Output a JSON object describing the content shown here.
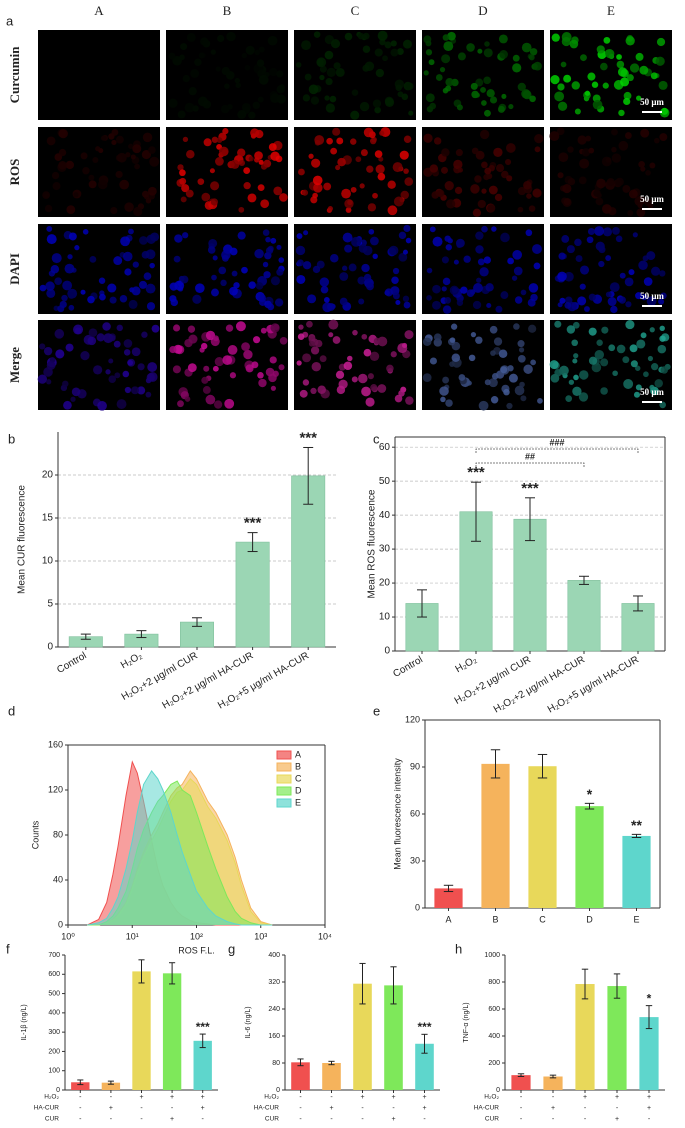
{
  "image_grid": {
    "panel": "a",
    "columns": [
      "A",
      "B",
      "C",
      "D",
      "E"
    ],
    "rows": [
      "Curcumin",
      "ROS",
      "DAPI",
      "Merge"
    ],
    "scale_bar": "50 μm"
  },
  "chart_data": [
    {
      "panel": "b",
      "type": "bar",
      "ylabel": "Mean CUR fluorescence",
      "categories": [
        "Control",
        "H₂O₂",
        "H₂O₂+2 μg/ml CUR",
        "H₂O₂+2 μg/ml HA-CUR",
        "H₂O₂+5 μg/ml HA-CUR"
      ],
      "values": [
        1.2,
        1.5,
        2.9,
        12.2,
        19.9
      ],
      "errors": [
        0.3,
        0.4,
        0.5,
        1.1,
        3.3
      ],
      "significance": [
        null,
        null,
        null,
        "***",
        "***"
      ],
      "color": "#9bd6b4",
      "ylim": [
        0,
        25
      ],
      "yticks": [
        0,
        5,
        10,
        15,
        20
      ],
      "grid": true
    },
    {
      "panel": "c",
      "type": "bar",
      "ylabel": "Mean ROS fluorescence",
      "categories": [
        "Control",
        "H₂O₂",
        "H₂O₂+2 μg/ml CUR",
        "H₂O₂+2 μg/ml HA-CUR",
        "H₂O₂+5 μg/ml HA-CUR"
      ],
      "values": [
        14,
        41,
        38.8,
        20.8,
        14
      ],
      "errors": [
        4,
        8.7,
        6.3,
        1.2,
        2.2
      ],
      "significance": [
        null,
        "***",
        "***",
        null,
        null
      ],
      "brackets": [
        {
          "from": 1,
          "to": 3,
          "text": "##"
        },
        {
          "from": 1,
          "to": 4,
          "text": "###"
        }
      ],
      "color": "#9bd6b4",
      "ylim": [
        0,
        63
      ],
      "yticks": [
        0,
        10,
        20,
        30,
        40,
        50,
        60
      ],
      "grid": true
    },
    {
      "panel": "d",
      "type": "area",
      "xlabel": "ROS F.L.",
      "ylabel": "Counts",
      "log_x": true,
      "legend": "top-right",
      "x": [
        2,
        3,
        4,
        5,
        6,
        8,
        10,
        12,
        15,
        20,
        25,
        30,
        40,
        50,
        60,
        80,
        100,
        150,
        200,
        300,
        400,
        500,
        700,
        1000,
        1500
      ],
      "series": [
        {
          "name": "A",
          "color": "#f0504f",
          "values": [
            0,
            5,
            20,
            45,
            70,
            115,
            145,
            135,
            110,
            75,
            50,
            35,
            20,
            12,
            8,
            4,
            2,
            1,
            0,
            0,
            0,
            0,
            0,
            0,
            0
          ]
        },
        {
          "name": "B",
          "color": "#f5b35c",
          "values": [
            0,
            0,
            2,
            5,
            10,
            20,
            35,
            50,
            65,
            80,
            90,
            100,
            115,
            122,
            125,
            137,
            130,
            110,
            100,
            80,
            60,
            40,
            15,
            3,
            0
          ]
        },
        {
          "name": "C",
          "color": "#e8d85a",
          "values": [
            0,
            0,
            2,
            4,
            8,
            18,
            32,
            46,
            60,
            75,
            85,
            95,
            110,
            118,
            120,
            130,
            125,
            105,
            95,
            75,
            55,
            35,
            12,
            2,
            0
          ]
        },
        {
          "name": "D",
          "color": "#7ee85a",
          "values": [
            0,
            0,
            3,
            8,
            15,
            30,
            50,
            68,
            85,
            100,
            110,
            115,
            125,
            128,
            120,
            115,
            100,
            70,
            50,
            25,
            12,
            6,
            2,
            0,
            0
          ]
        },
        {
          "name": "E",
          "color": "#5ed6cc",
          "values": [
            0,
            2,
            6,
            15,
            25,
            50,
            75,
            100,
            125,
            137,
            130,
            120,
            100,
            80,
            65,
            45,
            30,
            15,
            8,
            3,
            1,
            0,
            0,
            0,
            0
          ]
        }
      ],
      "xlim": [
        1,
        10000
      ],
      "xticks": [
        {
          "value": 1,
          "label": "10⁰"
        },
        {
          "value": 10,
          "label": "10¹"
        },
        {
          "value": 100,
          "label": "10²"
        },
        {
          "value": 1000,
          "label": "10³"
        },
        {
          "value": 10000,
          "label": "10⁴"
        }
      ],
      "ylim": [
        0,
        160
      ],
      "yticks": [
        0,
        40,
        80,
        120,
        160
      ]
    },
    {
      "panel": "e",
      "type": "bar",
      "ylabel": "Mean fluorescence intensity",
      "categories": [
        "A",
        "B",
        "C",
        "D",
        "E"
      ],
      "values": [
        12.5,
        92,
        90.5,
        65,
        46
      ],
      "errors": [
        2,
        9,
        7.5,
        1.8,
        1
      ],
      "significance": [
        null,
        null,
        null,
        "*",
        "**"
      ],
      "colors": [
        "#f0504f",
        "#f5b35c",
        "#e8d85a",
        "#7ee85a",
        "#5ed6cc"
      ],
      "ylim": [
        0,
        120
      ],
      "yticks": [
        0,
        30,
        60,
        90,
        120
      ],
      "grid": false
    },
    {
      "panel": "f",
      "type": "bar",
      "ylabel": "IL-1β (ng/L)",
      "values": [
        40,
        38,
        615,
        605,
        255
      ],
      "errors": [
        12,
        8,
        60,
        55,
        35
      ],
      "significance": [
        null,
        null,
        null,
        null,
        "***"
      ],
      "colors": [
        "#f0504f",
        "#f5b35c",
        "#e8d85a",
        "#7ee85a",
        "#5ed6cc"
      ],
      "conditions": [
        {
          "name": "H₂O₂",
          "signs": [
            "-",
            "-",
            "+",
            "+",
            "+"
          ]
        },
        {
          "name": "HA-CUR",
          "signs": [
            "-",
            "+",
            "-",
            "-",
            "+"
          ]
        },
        {
          "name": "CUR",
          "signs": [
            "-",
            "-",
            "-",
            "+",
            "-"
          ]
        }
      ],
      "ylim": [
        0,
        700
      ],
      "yticks": [
        0,
        100,
        200,
        300,
        400,
        500,
        600,
        700
      ],
      "grid": false
    },
    {
      "panel": "g",
      "type": "bar",
      "ylabel": "IL-6 (ng/L)",
      "values": [
        82,
        80,
        315,
        310,
        137
      ],
      "errors": [
        10,
        5,
        60,
        55,
        28
      ],
      "significance": [
        null,
        null,
        null,
        null,
        "***"
      ],
      "colors": [
        "#f0504f",
        "#f5b35c",
        "#e8d85a",
        "#7ee85a",
        "#5ed6cc"
      ],
      "conditions": [
        {
          "name": "H₂O₂",
          "signs": [
            "-",
            "-",
            "+",
            "+",
            "+"
          ]
        },
        {
          "name": "HA-CUR",
          "signs": [
            "-",
            "+",
            "-",
            "-",
            "+"
          ]
        },
        {
          "name": "CUR",
          "signs": [
            "-",
            "-",
            "-",
            "+",
            "-"
          ]
        }
      ],
      "ylim": [
        0,
        400
      ],
      "yticks": [
        0,
        80,
        160,
        240,
        320,
        400
      ],
      "grid": false
    },
    {
      "panel": "h",
      "type": "bar",
      "ylabel": "TNF-α (ng/L)",
      "values": [
        110,
        100,
        785,
        770,
        540
      ],
      "errors": [
        10,
        10,
        110,
        90,
        85
      ],
      "significance": [
        null,
        null,
        null,
        null,
        "*"
      ],
      "colors": [
        "#f0504f",
        "#f5b35c",
        "#e8d85a",
        "#7ee85a",
        "#5ed6cc"
      ],
      "conditions": [
        {
          "name": "H₂O₂",
          "signs": [
            "-",
            "-",
            "+",
            "+",
            "+"
          ]
        },
        {
          "name": "HA-CUR",
          "signs": [
            "-",
            "+",
            "-",
            "-",
            "+"
          ]
        },
        {
          "name": "CUR",
          "signs": [
            "-",
            "-",
            "-",
            "+",
            "-"
          ]
        }
      ],
      "ylim": [
        0,
        1000
      ],
      "yticks": [
        0,
        200,
        400,
        600,
        800,
        1000
      ],
      "grid": false
    }
  ]
}
